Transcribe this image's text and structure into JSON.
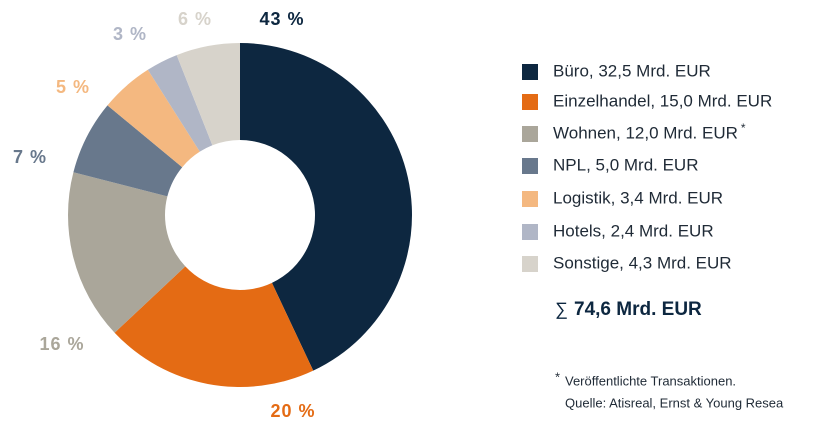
{
  "chart_data": {
    "type": "donut",
    "categories": [
      "Büro, 32,5 Mrd. EUR",
      "Einzelhandel, 15,0 Mrd. EUR",
      "Wohnen, 12,0 Mrd. EUR",
      "NPL, 5,0 Mrd. EUR",
      "Logistik, 3,4 Mrd. EUR",
      "Hotels, 2,4 Mrd. EUR",
      "Sonstige, 4,3 Mrd. EUR"
    ],
    "values": [
      43,
      20,
      16,
      7,
      5,
      3,
      6
    ],
    "value_labels": [
      "43 %",
      "20 %",
      "16 %",
      "7 %",
      "5 %",
      "3 %",
      "6 %"
    ],
    "colors": [
      "#0d2740",
      "#e46b14",
      "#aaa69a",
      "#68788c",
      "#f4b880",
      "#b0b6c6",
      "#d7d3cb"
    ],
    "legend": "right",
    "total": {
      "symbol": "∑",
      "text": "74,6 Mrd. EUR"
    },
    "footnote": {
      "marker": "*",
      "lines": [
        "Veröffentlichte Transaktionen.",
        "Quelle: Atisreal, Ernst & Young Resea"
      ]
    }
  }
}
